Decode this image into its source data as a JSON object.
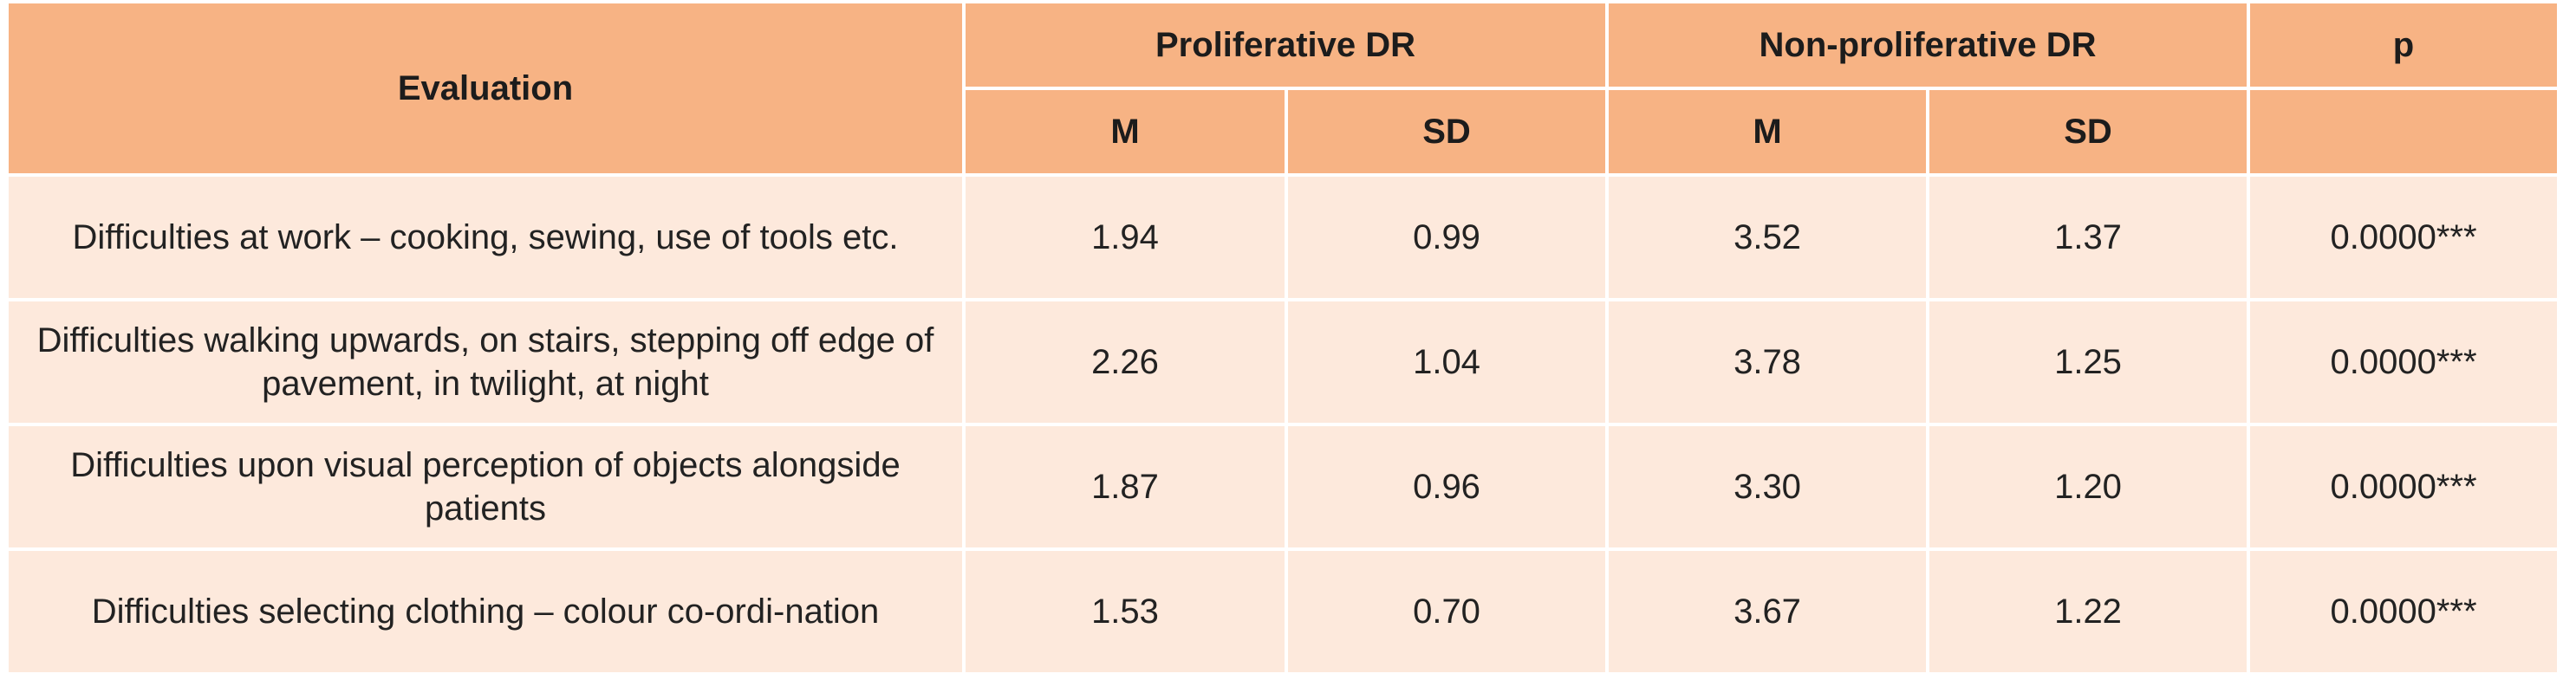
{
  "table": {
    "headers": {
      "evaluation": "Evaluation",
      "group1": "Proliferative DR",
      "group2": "Non-proliferative DR",
      "p": "p",
      "m": "M",
      "sd": "SD"
    },
    "rows": [
      {
        "evaluation": "Difficulties at work – cooking, sewing, use of tools etc.",
        "prolif_m": "1.94",
        "prolif_sd": "0.99",
        "nonprolif_m": "3.52",
        "nonprolif_sd": "1.37",
        "p": "0.0000***"
      },
      {
        "evaluation": "Difficulties walking upwards, on stairs, stepping off edge of pavement, in twilight, at night",
        "prolif_m": "2.26",
        "prolif_sd": "1.04",
        "nonprolif_m": "3.78",
        "nonprolif_sd": "1.25",
        "p": "0.0000***"
      },
      {
        "evaluation": "Difficulties upon visual perception of objects alongside patients",
        "prolif_m": "1.87",
        "prolif_sd": "0.96",
        "nonprolif_m": "3.30",
        "nonprolif_sd": "1.20",
        "p": "0.0000***"
      },
      {
        "evaluation": "Difficulties selecting clothing – colour co-ordi-nation",
        "prolif_m": "1.53",
        "prolif_sd": "0.70",
        "nonprolif_m": "3.67",
        "nonprolif_sd": "1.22",
        "p": "0.0000***"
      }
    ]
  },
  "colors": {
    "header_bg": "#f7b384",
    "body_bg": "#fde9dc"
  }
}
